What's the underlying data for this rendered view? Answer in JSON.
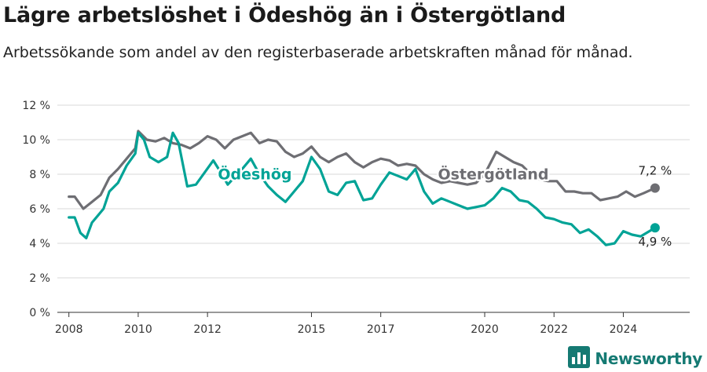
{
  "header": {
    "title": "Lägre arbetslöshet i Ödeshög än i Östergötland",
    "subtitle": "Arbetssökande som andel av den registerbaserade arbetskraften månad för månad."
  },
  "brand": {
    "name": "Newsworthy",
    "color": "#157a73"
  },
  "colors": {
    "odeshog": "#00a396",
    "ostergotland": "#6e6e73",
    "grid": "#d9d9d9",
    "axis": "#333333"
  },
  "chart_data": {
    "type": "line",
    "title": "Lägre arbetslöshet i Ödeshög än i Östergötland",
    "subtitle": "Arbetssökande som andel av den registerbaserade arbetskraften månad för månad.",
    "ylim": [
      0,
      12
    ],
    "y_ticks": [
      "0 %",
      "2 %",
      "4 %",
      "6 %",
      "8 %",
      "10 %",
      "12 %"
    ],
    "x_ticks": [
      "2008",
      "2010",
      "2012",
      "2015",
      "2017",
      "2020",
      "2022",
      "2024"
    ],
    "xlim": [
      "2007-09",
      "2025-12"
    ],
    "grid": true,
    "series": [
      {
        "name": "Östergötland",
        "color": "#6e6e73",
        "end_label": "7,2 %",
        "points": [
          [
            "2008-01",
            6.7
          ],
          [
            "2008-03",
            6.7
          ],
          [
            "2008-06",
            6.0
          ],
          [
            "2008-09",
            6.4
          ],
          [
            "2008-12",
            6.8
          ],
          [
            "2009-03",
            7.8
          ],
          [
            "2009-06",
            8.3
          ],
          [
            "2009-09",
            8.9
          ],
          [
            "2009-12",
            9.5
          ],
          [
            "2010-01",
            10.5
          ],
          [
            "2010-04",
            10.0
          ],
          [
            "2010-07",
            9.9
          ],
          [
            "2010-10",
            10.1
          ],
          [
            "2011-01",
            9.8
          ],
          [
            "2011-04",
            9.7
          ],
          [
            "2011-07",
            9.5
          ],
          [
            "2011-10",
            9.8
          ],
          [
            "2012-01",
            10.2
          ],
          [
            "2012-04",
            10.0
          ],
          [
            "2012-07",
            9.5
          ],
          [
            "2012-10",
            10.0
          ],
          [
            "2013-01",
            10.2
          ],
          [
            "2013-04",
            10.4
          ],
          [
            "2013-07",
            9.8
          ],
          [
            "2013-10",
            10.0
          ],
          [
            "2014-01",
            9.9
          ],
          [
            "2014-04",
            9.3
          ],
          [
            "2014-07",
            9.0
          ],
          [
            "2014-10",
            9.2
          ],
          [
            "2015-01",
            9.6
          ],
          [
            "2015-04",
            9.0
          ],
          [
            "2015-07",
            8.7
          ],
          [
            "2015-10",
            9.0
          ],
          [
            "2016-01",
            9.2
          ],
          [
            "2016-04",
            8.7
          ],
          [
            "2016-07",
            8.4
          ],
          [
            "2016-10",
            8.7
          ],
          [
            "2017-01",
            8.9
          ],
          [
            "2017-04",
            8.8
          ],
          [
            "2017-07",
            8.5
          ],
          [
            "2017-10",
            8.6
          ],
          [
            "2018-01",
            8.5
          ],
          [
            "2018-04",
            8.0
          ],
          [
            "2018-07",
            7.7
          ],
          [
            "2018-10",
            7.5
          ],
          [
            "2019-01",
            7.6
          ],
          [
            "2019-04",
            7.5
          ],
          [
            "2019-07",
            7.4
          ],
          [
            "2019-10",
            7.5
          ],
          [
            "2020-01",
            8.0
          ],
          [
            "2020-05",
            9.3
          ],
          [
            "2020-08",
            9.0
          ],
          [
            "2020-11",
            8.7
          ],
          [
            "2021-02",
            8.5
          ],
          [
            "2021-05",
            8.0
          ],
          [
            "2021-08",
            7.7
          ],
          [
            "2021-11",
            7.6
          ],
          [
            "2022-02",
            7.6
          ],
          [
            "2022-05",
            7.0
          ],
          [
            "2022-08",
            7.0
          ],
          [
            "2022-11",
            6.9
          ],
          [
            "2023-02",
            6.9
          ],
          [
            "2023-05",
            6.5
          ],
          [
            "2023-08",
            6.6
          ],
          [
            "2023-11",
            6.7
          ],
          [
            "2024-02",
            7.0
          ],
          [
            "2024-05",
            6.7
          ],
          [
            "2024-08",
            6.9
          ],
          [
            "2024-12",
            7.2
          ]
        ]
      },
      {
        "name": "Ödeshög",
        "color": "#00a396",
        "end_label": "4,9 %",
        "points": [
          [
            "2008-01",
            5.5
          ],
          [
            "2008-03",
            5.5
          ],
          [
            "2008-05",
            4.6
          ],
          [
            "2008-07",
            4.3
          ],
          [
            "2008-09",
            5.2
          ],
          [
            "2008-11",
            5.6
          ],
          [
            "2009-01",
            6.0
          ],
          [
            "2009-03",
            7.0
          ],
          [
            "2009-06",
            7.5
          ],
          [
            "2009-09",
            8.5
          ],
          [
            "2009-12",
            9.2
          ],
          [
            "2010-01",
            10.4
          ],
          [
            "2010-03",
            10.0
          ],
          [
            "2010-05",
            9.0
          ],
          [
            "2010-08",
            8.7
          ],
          [
            "2010-11",
            9.0
          ],
          [
            "2011-01",
            10.4
          ],
          [
            "2011-03",
            9.8
          ],
          [
            "2011-06",
            7.3
          ],
          [
            "2011-09",
            7.4
          ],
          [
            "2011-12",
            8.1
          ],
          [
            "2012-03",
            8.8
          ],
          [
            "2012-06",
            8.0
          ],
          [
            "2012-08",
            7.4
          ],
          [
            "2013-01",
            8.3
          ],
          [
            "2013-04",
            8.9
          ],
          [
            "2013-07",
            8.0
          ],
          [
            "2013-10",
            7.3
          ],
          [
            "2014-01",
            6.8
          ],
          [
            "2014-04",
            6.4
          ],
          [
            "2014-07",
            7.0
          ],
          [
            "2014-10",
            7.6
          ],
          [
            "2015-01",
            9.0
          ],
          [
            "2015-04",
            8.3
          ],
          [
            "2015-07",
            7.0
          ],
          [
            "2015-10",
            6.8
          ],
          [
            "2016-01",
            7.5
          ],
          [
            "2016-04",
            7.6
          ],
          [
            "2016-07",
            6.5
          ],
          [
            "2016-10",
            6.6
          ],
          [
            "2017-01",
            7.4
          ],
          [
            "2017-04",
            8.1
          ],
          [
            "2017-07",
            7.9
          ],
          [
            "2017-10",
            7.7
          ],
          [
            "2018-01",
            8.3
          ],
          [
            "2018-04",
            7.0
          ],
          [
            "2018-07",
            6.3
          ],
          [
            "2018-10",
            6.6
          ],
          [
            "2019-01",
            6.4
          ],
          [
            "2019-04",
            6.2
          ],
          [
            "2019-07",
            6.0
          ],
          [
            "2019-10",
            6.1
          ],
          [
            "2020-01",
            6.2
          ],
          [
            "2020-04",
            6.6
          ],
          [
            "2020-07",
            7.2
          ],
          [
            "2020-10",
            7.0
          ],
          [
            "2021-01",
            6.5
          ],
          [
            "2021-04",
            6.4
          ],
          [
            "2021-07",
            6.0
          ],
          [
            "2021-10",
            5.5
          ],
          [
            "2022-01",
            5.4
          ],
          [
            "2022-04",
            5.2
          ],
          [
            "2022-07",
            5.1
          ],
          [
            "2022-10",
            4.6
          ],
          [
            "2023-01",
            4.8
          ],
          [
            "2023-04",
            4.4
          ],
          [
            "2023-07",
            3.9
          ],
          [
            "2023-10",
            4.0
          ],
          [
            "2024-01",
            4.7
          ],
          [
            "2024-04",
            4.5
          ],
          [
            "2024-07",
            4.4
          ],
          [
            "2024-12",
            4.9
          ]
        ]
      }
    ]
  }
}
